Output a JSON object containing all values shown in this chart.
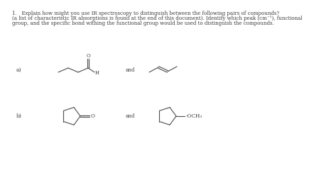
{
  "background_color": "#ffffff",
  "text_color": "#3a3a3a",
  "title_line1": "1.   Explain how might you use IR spectroscopy to distinguish between the following pairs of compounds?",
  "title_line2": "(a list of characteristic IR absorptions is found at the end of this document). Identify which peak (cm⁻¹), functional",
  "title_line3": "group, and the specific bond withing the functional group would be used to distinguish the compounds.",
  "label_a": "a)",
  "label_b": "b)",
  "and_text": "and",
  "och3_text": "-OCH₃",
  "font_size_title": 5.0,
  "font_size_label": 5.5,
  "font_size_and": 5.2,
  "font_size_mol": 5.0,
  "line_color": "#555555",
  "lw": 0.85
}
